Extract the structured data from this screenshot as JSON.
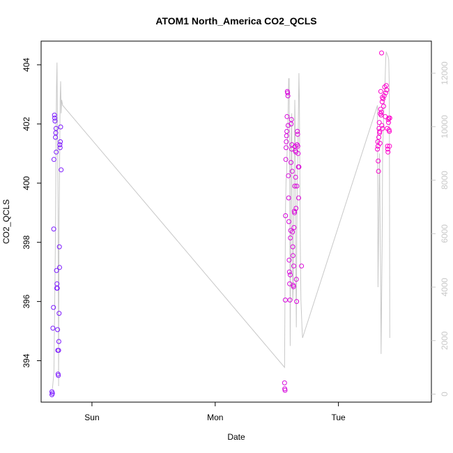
{
  "chart_data": {
    "type": "scatter",
    "title": "ATOM1 North_America CO2_QCLS",
    "xlabel": "Date",
    "ylabel": "CO2_QCLS",
    "x_tick_labels": [
      "Sun",
      "Mon",
      "Tue"
    ],
    "x_tick_positions_hours": [
      24,
      48,
      72
    ],
    "xlim_hours": [
      14.1,
      90.1
    ],
    "ylim": [
      392.6,
      404.8
    ],
    "y_ticks": [
      394,
      396,
      398,
      400,
      402,
      404
    ],
    "y2lim": [
      -300,
      13200
    ],
    "y2_ticks": [
      0,
      2000,
      4000,
      6000,
      8000,
      10000,
      12000
    ],
    "grid": false,
    "point_color_start": "#7a1aff",
    "point_color_end": "#ff00cc",
    "line_color": "#c8c8c8",
    "points": [
      [
        16.2,
        392.95
      ],
      [
        16.2,
        392.85
      ],
      [
        16.3,
        392.9
      ],
      [
        16.4,
        395.1
      ],
      [
        16.5,
        395.8
      ],
      [
        16.55,
        398.45
      ],
      [
        16.6,
        400.8
      ],
      [
        16.7,
        402.3
      ],
      [
        16.75,
        402.2
      ],
      [
        16.8,
        402.1
      ],
      [
        16.9,
        401.55
      ],
      [
        16.95,
        401.7
      ],
      [
        17.0,
        401.85
      ],
      [
        17.05,
        401.05
      ],
      [
        17.1,
        397.05
      ],
      [
        17.15,
        396.45
      ],
      [
        17.2,
        396.6
      ],
      [
        17.25,
        396.45
      ],
      [
        17.3,
        395.05
      ],
      [
        17.35,
        394.35
      ],
      [
        17.4,
        393.55
      ],
      [
        17.45,
        393.5
      ],
      [
        17.5,
        394.35
      ],
      [
        17.55,
        394.65
      ],
      [
        17.6,
        395.6
      ],
      [
        17.65,
        397.85
      ],
      [
        17.7,
        397.15
      ],
      [
        17.75,
        401.3
      ],
      [
        17.8,
        401.2
      ],
      [
        17.85,
        401.4
      ],
      [
        17.9,
        401.9
      ],
      [
        18.0,
        400.45
      ],
      [
        61.5,
        393.25
      ],
      [
        61.55,
        393.05
      ],
      [
        61.6,
        393.0
      ],
      [
        61.65,
        396.05
      ],
      [
        61.7,
        398.9
      ],
      [
        61.75,
        400.8
      ],
      [
        61.8,
        401.2
      ],
      [
        61.85,
        401.4
      ],
      [
        61.9,
        401.6
      ],
      [
        61.95,
        401.75
      ],
      [
        62.0,
        402.25
      ],
      [
        62.05,
        403.1
      ],
      [
        62.1,
        403.05
      ],
      [
        62.15,
        402.95
      ],
      [
        62.2,
        401.95
      ],
      [
        62.25,
        400.25
      ],
      [
        62.3,
        399.5
      ],
      [
        62.35,
        398.7
      ],
      [
        62.4,
        397.4
      ],
      [
        62.45,
        397.0
      ],
      [
        62.5,
        396.6
      ],
      [
        62.55,
        396.05
      ],
      [
        62.6,
        396.9
      ],
      [
        62.65,
        398.15
      ],
      [
        62.7,
        398.4
      ],
      [
        62.75,
        400.7
      ],
      [
        62.8,
        402.0
      ],
      [
        62.85,
        402.15
      ],
      [
        62.9,
        401.15
      ],
      [
        62.95,
        401.3
      ],
      [
        63.0,
        400.4
      ],
      [
        63.05,
        398.35
      ],
      [
        63.1,
        397.85
      ],
      [
        63.15,
        397.55
      ],
      [
        63.2,
        396.55
      ],
      [
        63.25,
        396.5
      ],
      [
        63.3,
        397.2
      ],
      [
        63.35,
        398.5
      ],
      [
        63.4,
        399.05
      ],
      [
        63.45,
        399.0
      ],
      [
        63.5,
        399.9
      ],
      [
        63.55,
        401.25
      ],
      [
        63.6,
        401.1
      ],
      [
        63.65,
        400.2
      ],
      [
        63.7,
        401.05
      ],
      [
        63.75,
        399.15
      ],
      [
        63.8,
        396.75
      ],
      [
        63.85,
        396.0
      ],
      [
        63.9,
        399.9
      ],
      [
        63.95,
        401.3
      ],
      [
        64.0,
        401.75
      ],
      [
        64.05,
        401.65
      ],
      [
        64.1,
        401.25
      ],
      [
        64.15,
        401.0
      ],
      [
        64.2,
        400.55
      ],
      [
        64.25,
        399.5
      ],
      [
        64.3,
        400.55
      ],
      [
        64.8,
        397.2
      ],
      [
        79.6,
        401.15
      ],
      [
        79.65,
        401.4
      ],
      [
        79.7,
        401.25
      ],
      [
        79.75,
        400.75
      ],
      [
        79.8,
        400.4
      ],
      [
        79.85,
        401.55
      ],
      [
        79.9,
        401.85
      ],
      [
        79.95,
        402.05
      ],
      [
        80.0,
        401.7
      ],
      [
        80.05,
        401.75
      ],
      [
        80.1,
        401.35
      ],
      [
        80.15,
        402.35
      ],
      [
        80.2,
        402.5
      ],
      [
        80.25,
        403.1
      ],
      [
        80.3,
        402.3
      ],
      [
        80.35,
        402.4
      ],
      [
        80.4,
        404.4
      ],
      [
        80.45,
        401.95
      ],
      [
        80.5,
        402.75
      ],
      [
        80.55,
        402.9
      ],
      [
        80.6,
        401.85
      ],
      [
        80.7,
        402.85
      ],
      [
        80.8,
        402.6
      ],
      [
        80.9,
        402.95
      ],
      [
        81.0,
        403.25
      ],
      [
        81.1,
        402.25
      ],
      [
        81.2,
        403.05
      ],
      [
        81.3,
        403.3
      ],
      [
        81.4,
        403.15
      ],
      [
        81.5,
        401.85
      ],
      [
        81.55,
        401.25
      ],
      [
        81.6,
        401.15
      ],
      [
        81.65,
        401.05
      ],
      [
        81.7,
        402.15
      ],
      [
        81.75,
        402.05
      ],
      [
        81.8,
        402.2
      ],
      [
        81.85,
        401.8
      ],
      [
        81.9,
        401.75
      ],
      [
        81.95,
        401.25
      ],
      [
        82.0,
        402.2
      ]
    ],
    "altitude_line": [
      [
        16.3,
        200
      ],
      [
        16.6,
        800
      ],
      [
        16.9,
        6000
      ],
      [
        17.0,
        9500
      ],
      [
        17.1,
        11500
      ],
      [
        17.2,
        12400
      ],
      [
        17.4,
        7000
      ],
      [
        17.5,
        300
      ],
      [
        17.6,
        6500
      ],
      [
        17.8,
        11000
      ],
      [
        17.9,
        11700
      ],
      [
        18.0,
        10500
      ],
      [
        18.1,
        11000
      ],
      [
        18.3,
        10800
      ],
      [
        61.5,
        1000
      ],
      [
        61.7,
        7000
      ],
      [
        61.8,
        8000
      ],
      [
        61.9,
        8200
      ],
      [
        62.0,
        9000
      ],
      [
        62.1,
        9700
      ],
      [
        62.2,
        10500
      ],
      [
        62.3,
        11800
      ],
      [
        62.4,
        11800
      ],
      [
        62.5,
        8500
      ],
      [
        62.6,
        1800
      ],
      [
        62.7,
        5000
      ],
      [
        62.8,
        9500
      ],
      [
        62.9,
        10500
      ],
      [
        63.0,
        6500
      ],
      [
        63.1,
        3500
      ],
      [
        63.2,
        4000
      ],
      [
        63.3,
        6500
      ],
      [
        63.4,
        9000
      ],
      [
        63.5,
        11000
      ],
      [
        63.6,
        9500
      ],
      [
        63.7,
        4500
      ],
      [
        63.8,
        2500
      ],
      [
        63.9,
        6000
      ],
      [
        64.0,
        8000
      ],
      [
        64.1,
        9000
      ],
      [
        64.2,
        10500
      ],
      [
        64.3,
        12000
      ],
      [
        64.4,
        11000
      ],
      [
        64.5,
        7500
      ],
      [
        64.6,
        5000
      ],
      [
        64.7,
        3500
      ],
      [
        64.8,
        3000
      ],
      [
        64.9,
        2500
      ],
      [
        65.0,
        2100
      ],
      [
        79.6,
        10800
      ],
      [
        79.7,
        4000
      ],
      [
        79.8,
        5500
      ],
      [
        80.0,
        9000
      ],
      [
        80.2,
        4500
      ],
      [
        80.3,
        1500
      ],
      [
        80.5,
        5500
      ],
      [
        80.6,
        9000
      ],
      [
        80.8,
        10500
      ],
      [
        81.0,
        11200
      ],
      [
        81.1,
        11800
      ],
      [
        81.2,
        12500
      ],
      [
        81.3,
        12800
      ],
      [
        81.5,
        12700
      ],
      [
        81.7,
        12600
      ],
      [
        81.8,
        12500
      ],
      [
        81.9,
        11500
      ],
      [
        82.0,
        2100
      ]
    ]
  }
}
